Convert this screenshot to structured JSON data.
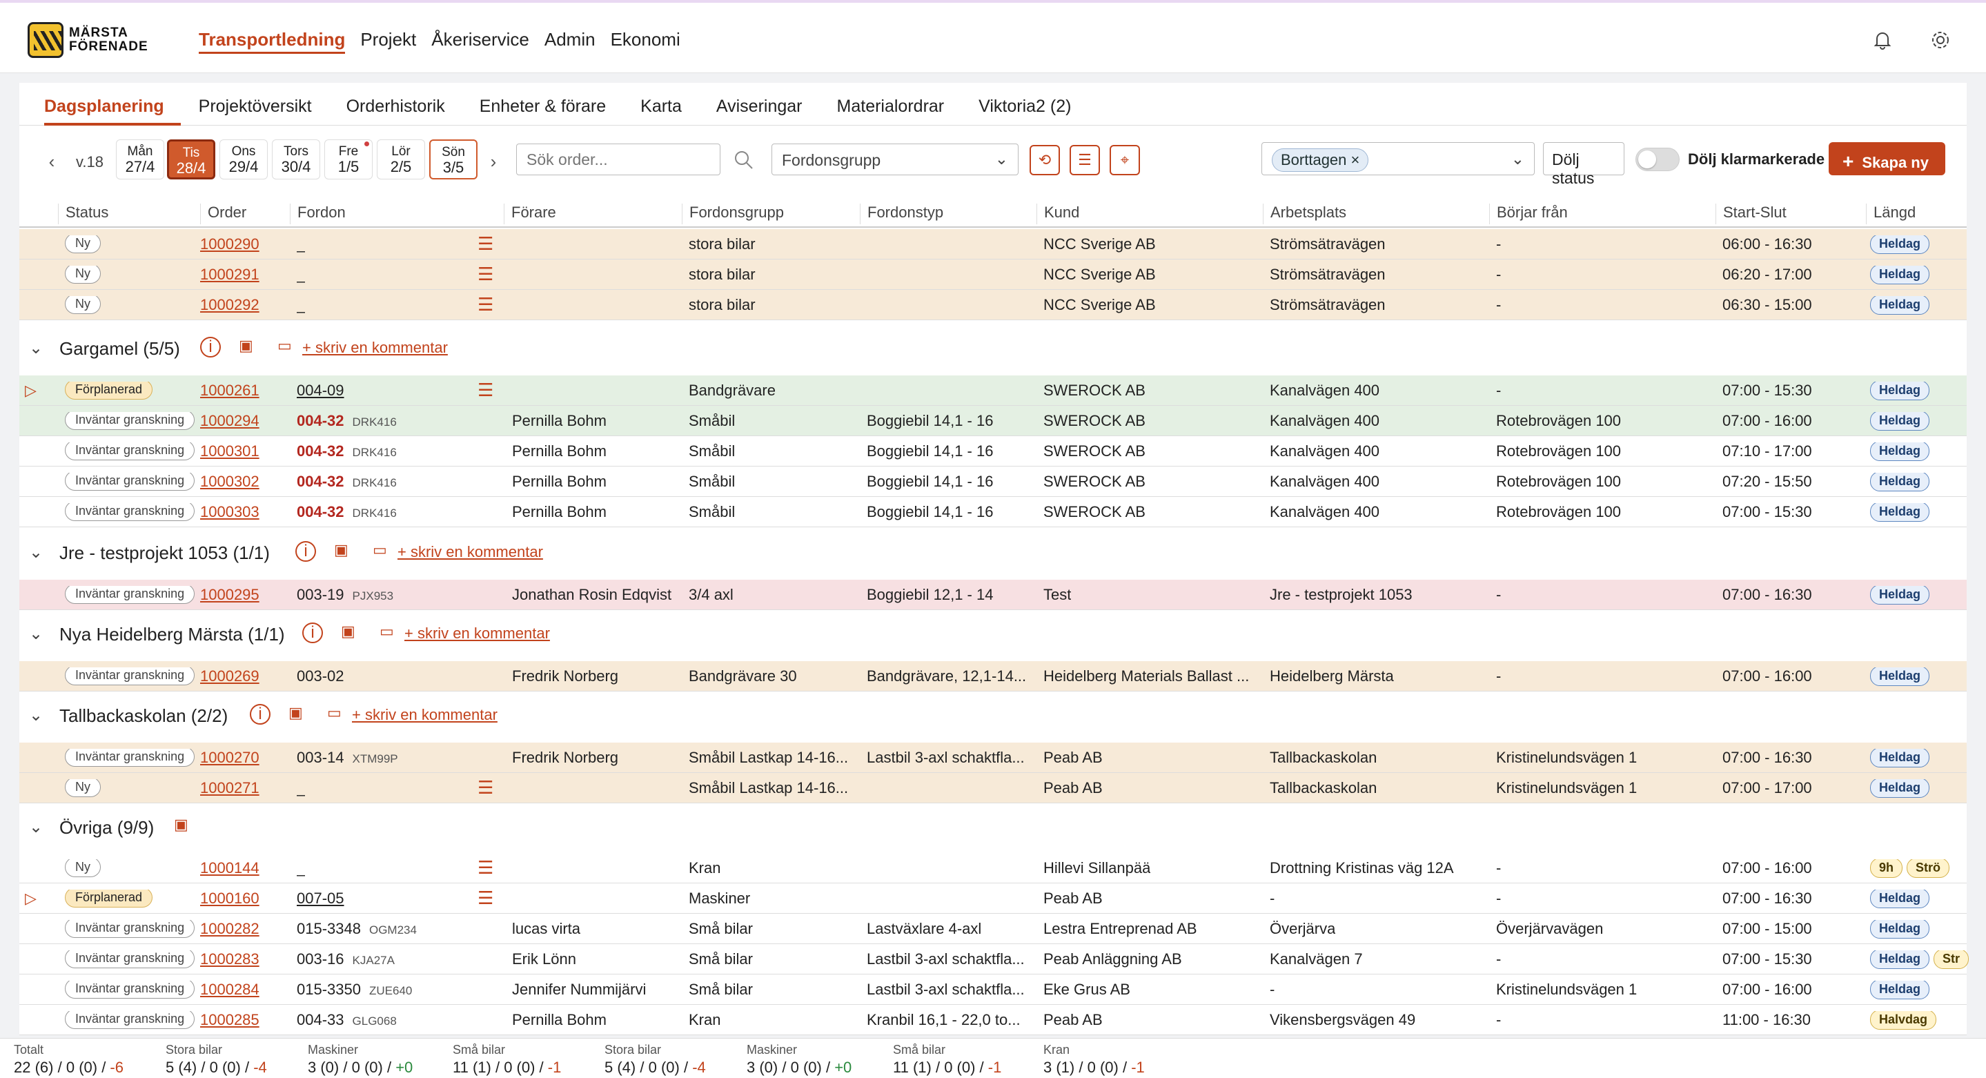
{
  "brand": {
    "line1": "MÄRSTA",
    "line2": "FÖRENADE"
  },
  "mainnav": [
    "Transportledning",
    "Projekt",
    "Åkeriservice",
    "Admin",
    "Ekonomi"
  ],
  "subtabs": [
    "Dagsplanering",
    "Projektöversikt",
    "Orderhistorik",
    "Enheter & förare",
    "Karta",
    "Aviseringar",
    "Materialordrar",
    "Viktoria2 (2)"
  ],
  "toolbar": {
    "week": "v.18",
    "days": [
      {
        "name": "Mån",
        "date": "27/4"
      },
      {
        "name": "Tis",
        "date": "28/4"
      },
      {
        "name": "Ons",
        "date": "29/4"
      },
      {
        "name": "Tors",
        "date": "30/4"
      },
      {
        "name": "Fre",
        "date": "1/5"
      },
      {
        "name": "Lör",
        "date": "2/5"
      },
      {
        "name": "Sön",
        "date": "3/5"
      }
    ],
    "search_placeholder": "Sök order...",
    "vehicle_group": "Fordonsgrupp",
    "filter_tag": "Borttagen",
    "hide_status": "Dölj status",
    "hide_done": "Dölj klarmarkerade",
    "create": "Skapa ny"
  },
  "columns": [
    "Status",
    "Order",
    "Fordon",
    "Förare",
    "Fordonsgrupp",
    "Fordonstyp",
    "Kund",
    "Arbetsplats",
    "Börjar från",
    "Start-Slut",
    "Längd"
  ],
  "comment_link": "+ skriv en kommentar",
  "top_rows": [
    {
      "status": "Ny",
      "order": "1000290",
      "vehicle": "_",
      "group": "stora bilar",
      "customer": "NCC Sverige AB",
      "site": "Strömsätravägen",
      "from": "-",
      "time": "06:00 - 16:30",
      "len": "Heldag"
    },
    {
      "status": "Ny",
      "order": "1000291",
      "vehicle": "_",
      "group": "stora bilar",
      "customer": "NCC Sverige AB",
      "site": "Strömsätravägen",
      "from": "-",
      "time": "06:20 - 17:00",
      "len": "Heldag"
    },
    {
      "status": "Ny",
      "order": "1000292",
      "vehicle": "_",
      "group": "stora bilar",
      "customer": "NCC Sverige AB",
      "site": "Strömsätravägen",
      "from": "-",
      "time": "06:30 - 15:00",
      "len": "Heldag"
    }
  ],
  "groups": {
    "g1": "Gargamel (5/5)",
    "g2": "Jre - testprojekt 1053 (1/1)",
    "g3": "Nya Heidelberg Märsta (1/1)",
    "g4": "Tallbackaskolan (2/2)",
    "g5": "Övriga (9/9)"
  },
  "g1_rows": [
    {
      "status": "Förplanerad",
      "order": "1000261",
      "vehicle": "004-09",
      "group": "Bandgrävare",
      "customer": "SWEROCK AB",
      "site": "Kanalvägen 400",
      "from": "-",
      "time": "07:00 - 15:30",
      "len": "Heldag"
    },
    {
      "status": "Inväntar granskning",
      "order": "1000294",
      "vehicle": "004-32",
      "plate": "DRK416",
      "driver": "Pernilla Bohm",
      "group": "Småbil",
      "type": "Boggiebil 14,1 - 16",
      "customer": "SWEROCK AB",
      "site": "Kanalvägen 400",
      "from": "Rotebrovägen 100",
      "time": "07:00 - 16:00",
      "len": "Heldag"
    },
    {
      "status": "Inväntar granskning",
      "order": "1000301",
      "vehicle": "004-32",
      "plate": "DRK416",
      "driver": "Pernilla Bohm",
      "group": "Småbil",
      "type": "Boggiebil 14,1 - 16",
      "customer": "SWEROCK AB",
      "site": "Kanalvägen 400",
      "from": "Rotebrovägen 100",
      "time": "07:10 - 17:00",
      "len": "Heldag"
    },
    {
      "status": "Inväntar granskning",
      "order": "1000302",
      "vehicle": "004-32",
      "plate": "DRK416",
      "driver": "Pernilla Bohm",
      "group": "Småbil",
      "type": "Boggiebil 14,1 - 16",
      "customer": "SWEROCK AB",
      "site": "Kanalvägen 400",
      "from": "Rotebrovägen 100",
      "time": "07:20 - 15:50",
      "len": "Heldag"
    },
    {
      "status": "Inväntar granskning",
      "order": "1000303",
      "vehicle": "004-32",
      "plate": "DRK416",
      "driver": "Pernilla Bohm",
      "group": "Småbil",
      "type": "Boggiebil 14,1 - 16",
      "customer": "SWEROCK AB",
      "site": "Kanalvägen 400",
      "from": "Rotebrovägen 100",
      "time": "07:00 - 15:30",
      "len": "Heldag"
    }
  ],
  "g2_rows": [
    {
      "status": "Inväntar granskning",
      "order": "1000295",
      "vehicle": "003-19",
      "plate": "PJX953",
      "driver": "Jonathan Rosin Edqvist",
      "group": "3/4 axl",
      "type": "Boggiebil 12,1 - 14",
      "customer": "Test",
      "site": "Jre - testprojekt 1053",
      "from": "-",
      "time": "07:00 - 16:30",
      "len": "Heldag"
    }
  ],
  "g3_rows": [
    {
      "status": "Inväntar granskning",
      "order": "1000269",
      "vehicle": "003-02",
      "driver": "Fredrik Norberg",
      "group": "Bandgrävare 30",
      "type": "Bandgrävare, 12,1-14...",
      "customer": "Heidelberg Materials Ballast ...",
      "site": "Heidelberg Märsta",
      "from": "-",
      "time": "07:00 - 16:00",
      "len": "Heldag"
    }
  ],
  "g4_rows": [
    {
      "status": "Inväntar granskning",
      "order": "1000270",
      "vehicle": "003-14",
      "plate": "XTM99P",
      "driver": "Fredrik Norberg",
      "group": "Småbil Lastkap 14-16...",
      "type": "Lastbil 3-axl schaktfla...",
      "customer": "Peab AB",
      "site": "Tallbackaskolan",
      "from": "Kristinelundsvägen 1",
      "time": "07:00 - 16:30",
      "len": "Heldag"
    },
    {
      "status": "Ny",
      "order": "1000271",
      "vehicle": "_",
      "group": "Småbil Lastkap 14-16...",
      "customer": "Peab AB",
      "site": "Tallbackaskolan",
      "from": "Kristinelundsvägen 1",
      "time": "07:00 - 17:00",
      "len": "Heldag"
    }
  ],
  "g5_rows": [
    {
      "status": "Ny",
      "order": "1000144",
      "vehicle": "_",
      "group": "Kran",
      "customer": "Hillevi Sillanpää",
      "site": "Drottning Kristinas väg 12A",
      "from": "-",
      "time": "07:00 - 16:00",
      "len": "9h",
      "len2": "Strö"
    },
    {
      "status": "Förplanerad",
      "order": "1000160",
      "vehicle": "007-05",
      "group": "Maskiner",
      "customer": "Peab AB",
      "site": "-",
      "from": "-",
      "time": "07:00 - 16:30",
      "len": "Heldag"
    },
    {
      "status": "Inväntar granskning",
      "order": "1000282",
      "vehicle": "015-3348",
      "plate": "OGM234",
      "driver": "lucas virta",
      "group": "Små bilar",
      "type": "Lastväxlare 4-axl",
      "customer": "Lestra Entreprenad AB",
      "site": "Överjärva",
      "from": "Överjärvavägen",
      "time": "07:00 - 15:00",
      "len": "Heldag"
    },
    {
      "status": "Inväntar granskning",
      "order": "1000283",
      "vehicle": "003-16",
      "plate": "KJA27A",
      "driver": "Erik Lönn",
      "group": "Små bilar",
      "type": "Lastbil 3-axl schaktfla...",
      "customer": "Peab Anläggning AB",
      "site": "Kanalvägen 7",
      "from": "-",
      "time": "07:00 - 15:30",
      "len": "Heldag",
      "len2": "Str"
    },
    {
      "status": "Inväntar granskning",
      "order": "1000284",
      "vehicle": "015-3350",
      "plate": "ZUE640",
      "driver": "Jennifer Nummijärvi",
      "group": "Små bilar",
      "type": "Lastbil 3-axl schaktfla...",
      "customer": "Eke Grus AB",
      "site": "-",
      "from": "Kristinelundsvägen 1",
      "time": "07:00 - 16:00",
      "len": "Heldag"
    },
    {
      "status": "Inväntar granskning",
      "order": "1000285",
      "vehicle": "004-33",
      "plate": "GLG068",
      "driver": "Pernilla Bohm",
      "group": "Kran",
      "type": "Kranbil 16,1 - 22,0 to...",
      "customer": "Peab AB",
      "site": "Vikensbergsvägen 49",
      "from": "-",
      "time": "11:00 - 16:30",
      "len": "Halvdag"
    }
  ],
  "footer": [
    {
      "label": "Totalt",
      "a": "22",
      "b": "(6)",
      "c": "0",
      "d": "(0)",
      "e": "-6",
      "sign": "neg"
    },
    {
      "label": "Stora bilar",
      "a": "5",
      "b": "(4)",
      "c": "0",
      "d": "(0)",
      "e": "-4",
      "sign": "neg"
    },
    {
      "label": "Maskiner",
      "a": "3",
      "b": "(0)",
      "c": "0",
      "d": "(0)",
      "e": "+0",
      "sign": "pos"
    },
    {
      "label": "Små bilar",
      "a": "11",
      "b": "(1)",
      "c": "0",
      "d": "(0)",
      "e": "-1",
      "sign": "neg"
    },
    {
      "label": "Stora bilar",
      "a": "5",
      "b": "(4)",
      "c": "0",
      "d": "(0)",
      "e": "-4",
      "sign": "neg"
    },
    {
      "label": "Maskiner",
      "a": "3",
      "b": "(0)",
      "c": "0",
      "d": "(0)",
      "e": "+0",
      "sign": "pos"
    },
    {
      "label": "Små bilar",
      "a": "11",
      "b": "(1)",
      "c": "0",
      "d": "(0)",
      "e": "-1",
      "sign": "neg"
    },
    {
      "label": "Kran",
      "a": "3",
      "b": "(1)",
      "c": "0",
      "d": "(0)",
      "e": "-1",
      "sign": "neg"
    }
  ],
  "colors": {
    "accent": "#c2431c",
    "row_tan": "#f7ead8",
    "row_green": "#e4f0e3",
    "row_pink": "#f7e0e2"
  },
  "icons": [
    "bell-icon",
    "gear-icon",
    "search-icon",
    "history-icon",
    "list-icon",
    "map-pin-icon",
    "info-icon",
    "calendar-icon",
    "comment-icon",
    "chevron-down-icon",
    "send-icon"
  ]
}
